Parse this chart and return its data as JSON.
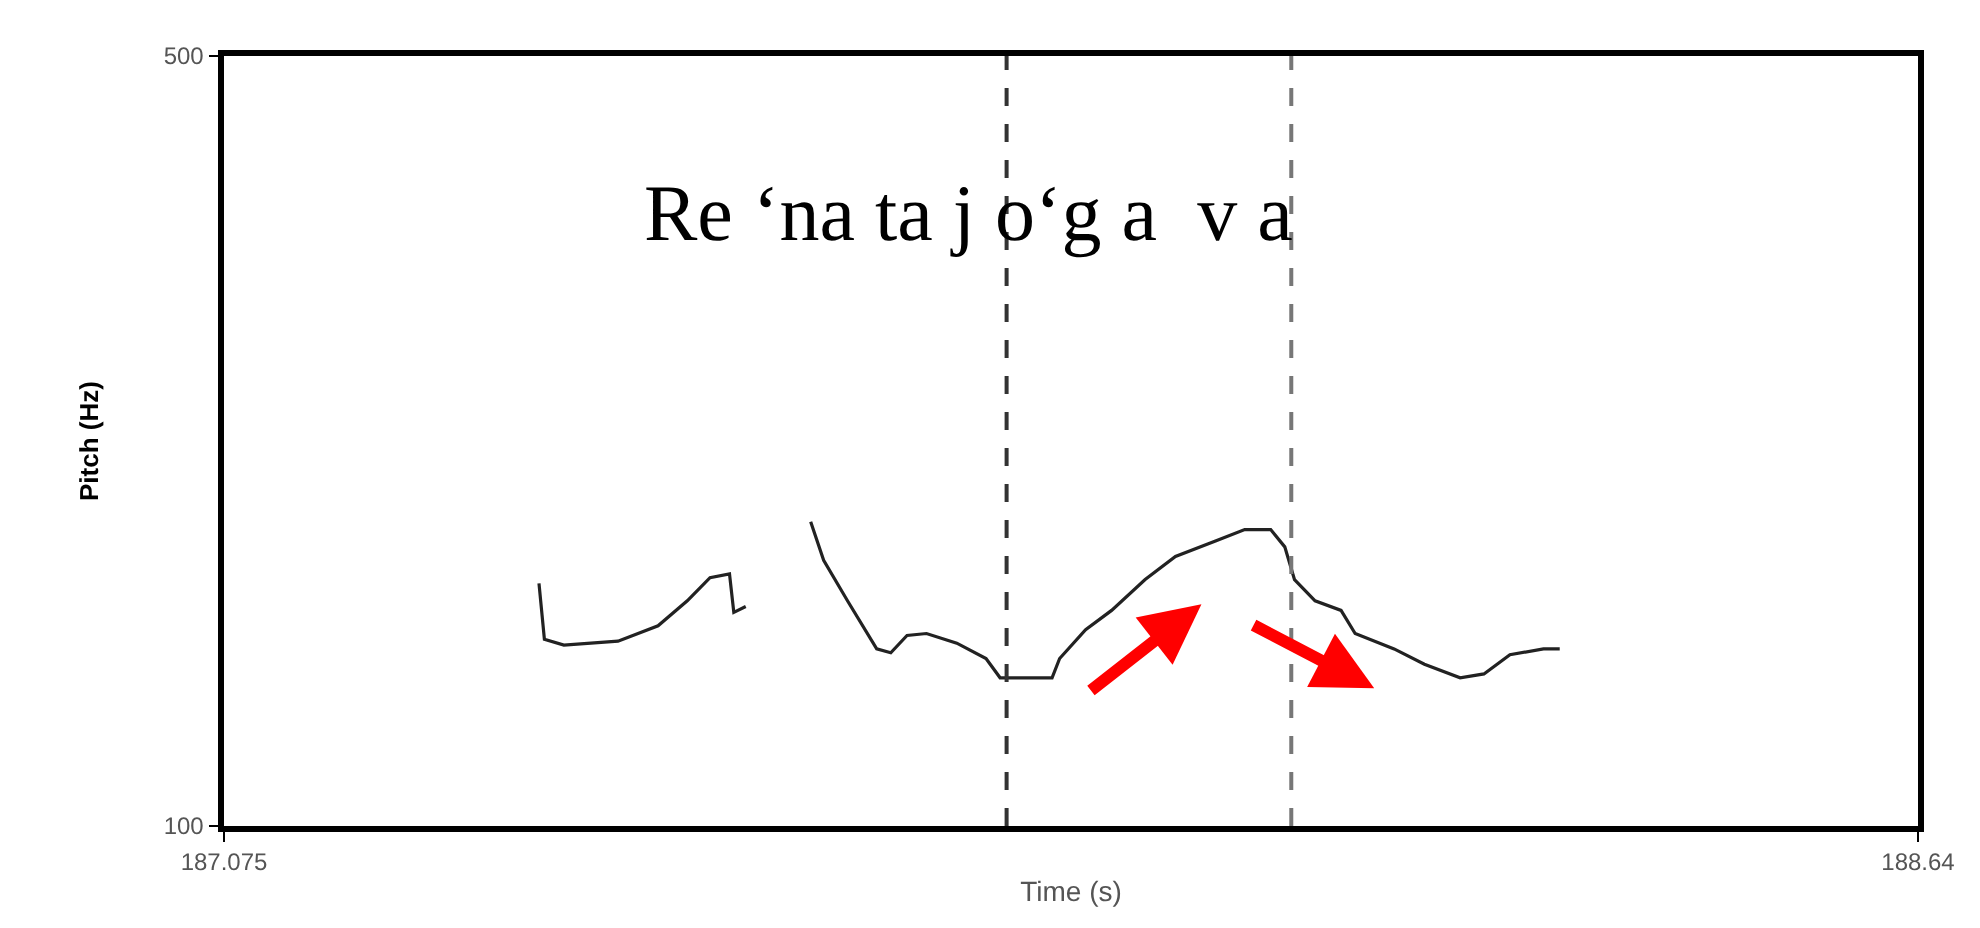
{
  "chart_data": {
    "type": "line",
    "xlabel": "Time (s)",
    "ylabel": "Pitch (Hz)",
    "annotations": [
      "Re ‘na ta j o‘g a  v a"
    ],
    "series": [
      {
        "color": "#222222",
        "x": [
          187.366,
          187.371,
          187.389,
          187.439,
          187.476,
          187.503,
          187.524,
          187.542,
          187.546,
          187.557,
          187.587,
          187.617,
          187.629,
          187.651,
          187.678,
          187.691,
          187.706,
          187.724,
          187.752,
          187.779,
          187.792,
          187.816,
          187.84,
          187.847,
          187.871,
          187.895,
          187.926,
          187.954,
          187.991,
          188.018,
          188.042,
          188.055,
          188.064,
          188.083,
          188.107,
          188.12,
          188.156,
          188.184,
          188.217,
          188.239,
          188.263,
          188.294,
          188.309
        ],
        "values": [
          226,
          197,
          194,
          196,
          204,
          217,
          229,
          231,
          211,
          214,
          null,
          258,
          238,
          217,
          192,
          190,
          199,
          200,
          195,
          187,
          177,
          177,
          177,
          187,
          202,
          212,
          228,
          240,
          248,
          254,
          254,
          245,
          228,
          217,
          212,
          200,
          192,
          184,
          177,
          179,
          189,
          192,
          192
        ]
      }
    ],
    "xlim": [
      187.075,
      188.64
    ],
    "xticks": [
      187.075,
      188.64
    ],
    "ylim": [
      100,
      500
    ],
    "yticks": [
      100,
      500
    ],
    "ref_lines": [
      {
        "axis": "x",
        "value": 187.798,
        "color": "#333333",
        "line_style": "dashed"
      },
      {
        "axis": "x",
        "value": 188.061,
        "color": "#777777",
        "line_style": "dashed"
      }
    ],
    "marker": "none",
    "line_style": "solid"
  }
}
